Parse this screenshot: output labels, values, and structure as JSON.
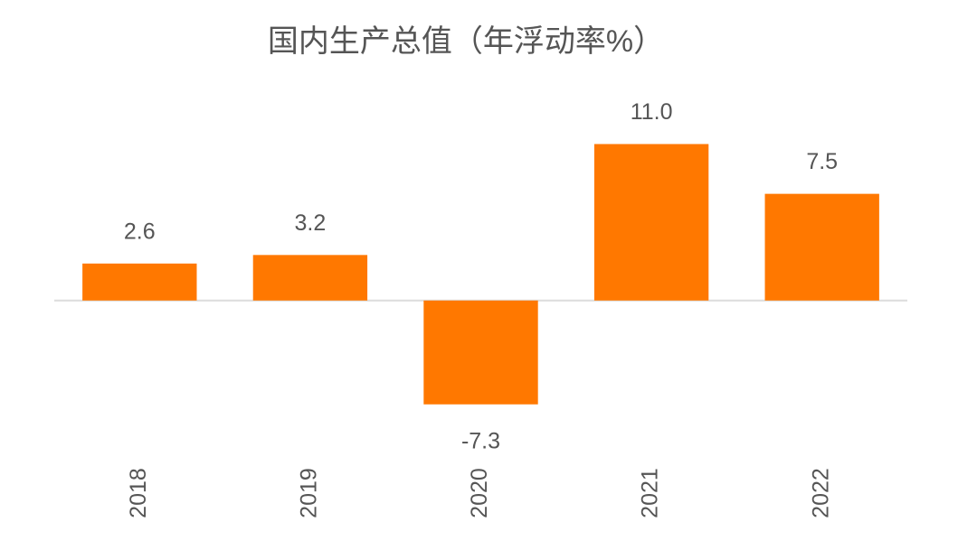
{
  "chart_data": {
    "type": "bar",
    "title": "国内生产总值（年浮动率%）",
    "categories": [
      "2018",
      "2019",
      "2020",
      "2021",
      "2022"
    ],
    "values": [
      2.6,
      3.2,
      -7.3,
      11.0,
      7.5
    ],
    "value_labels": [
      "2.6",
      "3.2",
      "-7.3",
      "11.0",
      "7.5"
    ],
    "color": "#ff7800",
    "ylim": [
      -10,
      15
    ]
  }
}
